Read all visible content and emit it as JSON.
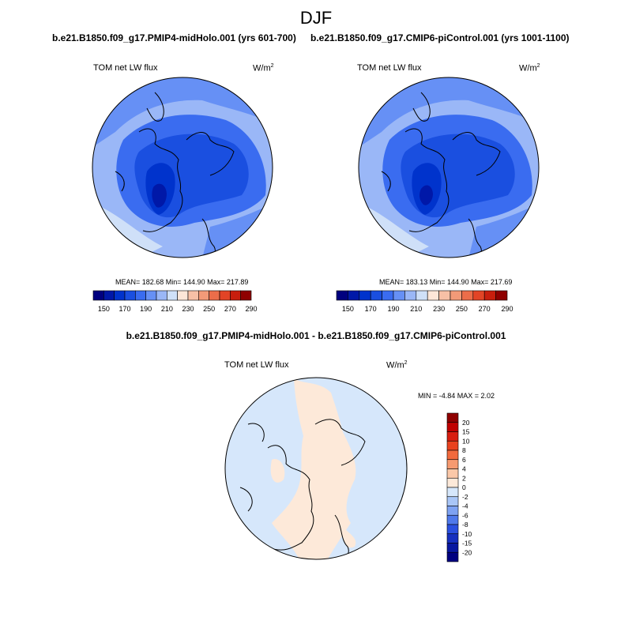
{
  "title": "DJF",
  "panels": [
    {
      "case": "b.e21.B1850.f09_g17.PMIP4-midHolo.001 (yrs 601-700)",
      "variable": "TOM net LW flux",
      "units": "W/m",
      "units_exp": "2",
      "stats": "MEAN= 182.68  Min= 144.90  Max= 217.89"
    },
    {
      "case": "b.e21.B1850.f09_g17.CMIP6-piControl.001 (yrs 1001-1100)",
      "variable": "TOM net LW flux",
      "units": "W/m",
      "units_exp": "2",
      "stats": "MEAN= 183.13  Min= 144.90  Max= 217.69"
    }
  ],
  "diff": {
    "title": "b.e21.B1850.f09_g17.PMIP4-midHolo.001 - b.e21.B1850.f09_g17.CMIP6-piControl.001",
    "variable": "TOM net LW flux",
    "units": "W/m",
    "units_exp": "2",
    "stats": "MIN =  -4.84 MAX =   2.02"
  },
  "chart_data": [
    {
      "type": "heatmap",
      "projection": "north-polar-stereographic",
      "colorbar": {
        "orientation": "horizontal",
        "colors": [
          "#00007f",
          "#0018a8",
          "#0033cc",
          "#1a4fe0",
          "#3a6cf0",
          "#6690f5",
          "#9ab7f7",
          "#cfe0f8",
          "#fde6d8",
          "#f7c0a6",
          "#f29a78",
          "#ec6d4a",
          "#e24426",
          "#c81e0d",
          "#8f0000"
        ],
        "tick_labels": [
          "150",
          "170",
          "190",
          "210",
          "230",
          "250",
          "270",
          "290"
        ]
      }
    },
    {
      "type": "heatmap",
      "projection": "north-polar-stereographic",
      "colorbar": {
        "orientation": "horizontal",
        "colors": [
          "#00007f",
          "#0018a8",
          "#0033cc",
          "#1a4fe0",
          "#3a6cf0",
          "#6690f5",
          "#9ab7f7",
          "#cfe0f8",
          "#fde6d8",
          "#f7c0a6",
          "#f29a78",
          "#ec6d4a",
          "#e24426",
          "#c81e0d",
          "#8f0000"
        ],
        "tick_labels": [
          "150",
          "170",
          "190",
          "210",
          "230",
          "250",
          "270",
          "290"
        ]
      }
    },
    {
      "type": "heatmap",
      "projection": "north-polar-stereographic",
      "colorbar": {
        "orientation": "vertical",
        "colors": [
          "#8f0000",
          "#c00000",
          "#d81e10",
          "#e9421f",
          "#f26a3d",
          "#f69a70",
          "#fbc8a8",
          "#fde9d9",
          "#d6e7fb",
          "#a9c6f7",
          "#7ea2f2",
          "#4f79eb",
          "#2a50e0",
          "#1630c0",
          "#0818a0",
          "#000080"
        ],
        "tick_labels": [
          "20",
          "15",
          "10",
          "8",
          "6",
          "4",
          "2",
          "0",
          "-2",
          "-4",
          "-6",
          "-8",
          "-10",
          "-15",
          "-20"
        ]
      }
    }
  ]
}
